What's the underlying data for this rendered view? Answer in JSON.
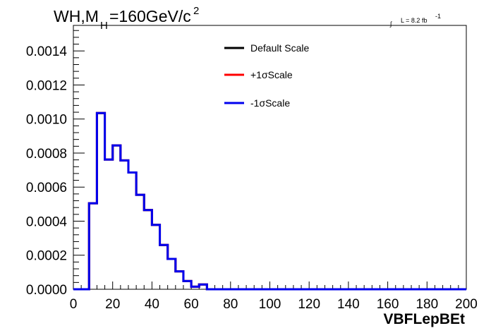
{
  "chart_data": {
    "type": "line",
    "title": {
      "main": "WH,M",
      "subscript": "H",
      "value": "=160GeV/c",
      "superscript": "2"
    },
    "luminosity": {
      "integral": "∫",
      "label": "L = 8.2 fb",
      "superscript": "-1"
    },
    "xlabel": "VBFLepBEt",
    "ylabel": "",
    "xlim": [
      0,
      200
    ],
    "ylim": [
      0,
      0.00155
    ],
    "x_ticks": [
      0,
      20,
      40,
      60,
      80,
      100,
      120,
      140,
      160,
      180,
      200
    ],
    "x_tick_labels": [
      "0",
      "20",
      "40",
      "60",
      "80",
      "100",
      "120",
      "140",
      "160",
      "180",
      "200"
    ],
    "y_ticks": [
      0,
      0.0002,
      0.0004,
      0.0006,
      0.0008,
      0.001,
      0.0012,
      0.0014
    ],
    "y_tick_labels": [
      "0.0000",
      "0.0002",
      "0.0004",
      "0.0006",
      "0.0008",
      "0.0010",
      "0.0012",
      "0.0014"
    ],
    "bin_edges": [
      0,
      4,
      8,
      12,
      16,
      20,
      24,
      28,
      32,
      36,
      40,
      44,
      48,
      52,
      56,
      60,
      64,
      68,
      72,
      76,
      80,
      84,
      88,
      92,
      96,
      100,
      104,
      108,
      112,
      116,
      120,
      124,
      128,
      132,
      136,
      140,
      144,
      148,
      152,
      156,
      160,
      164,
      168,
      172,
      176,
      180,
      184,
      188,
      192,
      196,
      200
    ],
    "series": [
      {
        "name": "Default Scale",
        "color": "#000000",
        "values": [
          0,
          0,
          0.000505,
          0.001035,
          0.000762,
          0.000845,
          0.000757,
          0.000686,
          0.000555,
          0.000465,
          0.000378,
          0.00026,
          0.000178,
          0.000105,
          4.8e-05,
          1.5e-05,
          2.8e-05,
          0,
          0,
          0,
          0,
          0,
          0,
          0,
          0,
          0,
          0,
          0,
          0,
          0,
          0,
          0,
          0,
          0,
          0,
          0,
          0,
          0,
          0,
          0,
          0,
          0,
          0,
          0,
          0,
          0,
          0,
          0,
          0,
          0
        ]
      },
      {
        "name": "+1σScale",
        "color": "#ff0000",
        "values": [
          0,
          0,
          0.000505,
          0.001035,
          0.000762,
          0.000845,
          0.000757,
          0.000686,
          0.000555,
          0.000465,
          0.000378,
          0.00026,
          0.000178,
          0.000105,
          4.8e-05,
          1.5e-05,
          2.8e-05,
          0,
          0,
          0,
          0,
          0,
          0,
          0,
          0,
          0,
          0,
          0,
          0,
          0,
          0,
          0,
          0,
          0,
          0,
          0,
          0,
          0,
          0,
          0,
          0,
          0,
          0,
          0,
          0,
          0,
          0,
          0,
          0,
          0
        ]
      },
      {
        "name": "-1σScale",
        "color": "#0000ee",
        "values": [
          0,
          0,
          0.000505,
          0.001035,
          0.000762,
          0.000845,
          0.000757,
          0.000686,
          0.000555,
          0.000465,
          0.000378,
          0.00026,
          0.000178,
          0.000105,
          4.8e-05,
          1.5e-05,
          2.8e-05,
          0,
          0,
          0,
          0,
          0,
          0,
          0,
          0,
          0,
          0,
          0,
          0,
          0,
          0,
          0,
          0,
          0,
          0,
          0,
          0,
          0,
          0,
          0,
          0,
          0,
          0,
          0,
          0,
          0,
          0,
          0,
          0,
          0
        ]
      }
    ],
    "legend_placement": "top-center",
    "grid": false
  }
}
